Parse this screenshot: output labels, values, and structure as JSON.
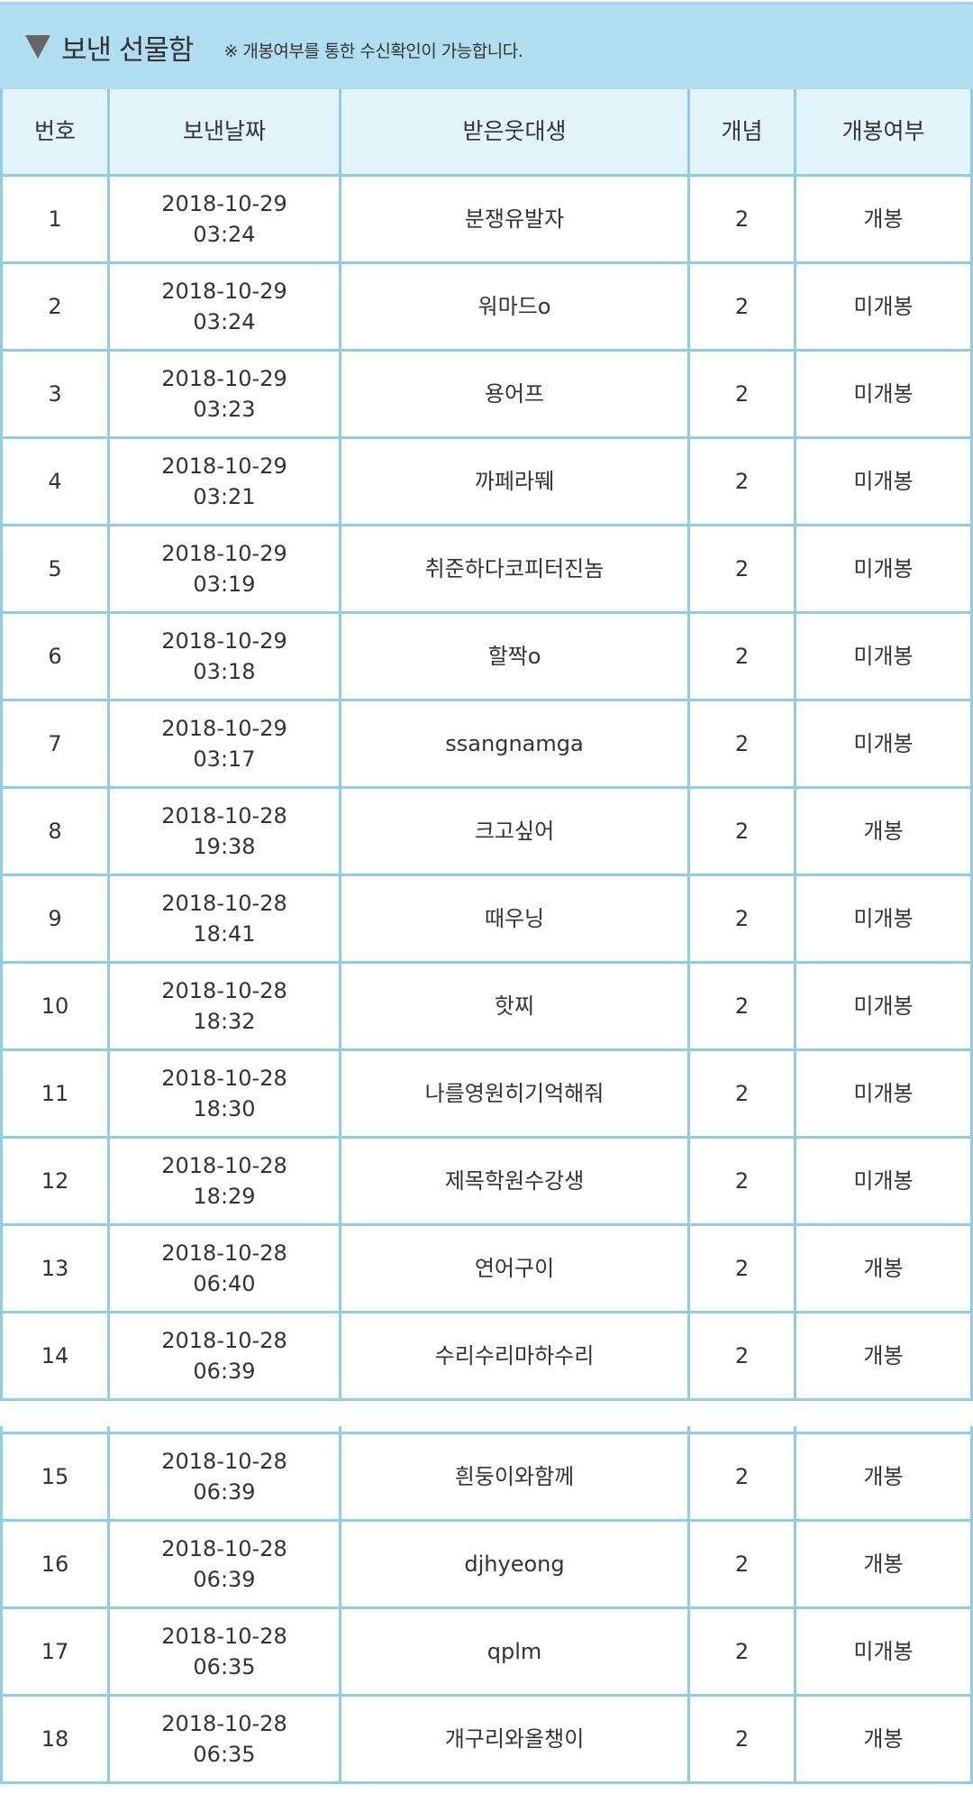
{
  "header": {
    "icon": "triangle-down-icon",
    "title": "보낸 선물함",
    "note": "※ 개봉여부를 통한 수신확인이 가능합니다."
  },
  "colors": {
    "band": "#b0ddf0",
    "header_row": "#e2f3fa",
    "border": "#8fcde6"
  },
  "columns": [
    "번호",
    "보낸날짜",
    "받은웃대생",
    "개념",
    "개봉여부"
  ],
  "rows": [
    {
      "no": "1",
      "date": "2018-10-29",
      "time": "03:24",
      "name": "분쟁유발자",
      "count": "2",
      "status": "개봉"
    },
    {
      "no": "2",
      "date": "2018-10-29",
      "time": "03:24",
      "name": "워마드o",
      "count": "2",
      "status": "미개봉"
    },
    {
      "no": "3",
      "date": "2018-10-29",
      "time": "03:23",
      "name": "용어프",
      "count": "2",
      "status": "미개봉"
    },
    {
      "no": "4",
      "date": "2018-10-29",
      "time": "03:21",
      "name": "까페라뛔",
      "count": "2",
      "status": "미개봉"
    },
    {
      "no": "5",
      "date": "2018-10-29",
      "time": "03:19",
      "name": "취준하다코피터진놈",
      "count": "2",
      "status": "미개봉"
    },
    {
      "no": "6",
      "date": "2018-10-29",
      "time": "03:18",
      "name": "할짝o",
      "count": "2",
      "status": "미개봉"
    },
    {
      "no": "7",
      "date": "2018-10-29",
      "time": "03:17",
      "name": "ssangnamga",
      "count": "2",
      "status": "미개봉"
    },
    {
      "no": "8",
      "date": "2018-10-28",
      "time": "19:38",
      "name": "크고싶어",
      "count": "2",
      "status": "개봉"
    },
    {
      "no": "9",
      "date": "2018-10-28",
      "time": "18:41",
      "name": "때우닝",
      "count": "2",
      "status": "미개봉"
    },
    {
      "no": "10",
      "date": "2018-10-28",
      "time": "18:32",
      "name": "핫찌",
      "count": "2",
      "status": "미개봉"
    },
    {
      "no": "11",
      "date": "2018-10-28",
      "time": "18:30",
      "name": "나를영원히기억해줘",
      "count": "2",
      "status": "미개봉"
    },
    {
      "no": "12",
      "date": "2018-10-28",
      "time": "18:29",
      "name": "제목학원수강생",
      "count": "2",
      "status": "미개봉"
    },
    {
      "no": "13",
      "date": "2018-10-28",
      "time": "06:40",
      "name": "연어구이",
      "count": "2",
      "status": "개봉"
    },
    {
      "no": "14",
      "date": "2018-10-28",
      "time": "06:39",
      "name": "수리수리마하수리",
      "count": "2",
      "status": "개봉"
    },
    {
      "no": "15",
      "date": "2018-10-28",
      "time": "06:39",
      "name": "흰둥이와함께",
      "count": "2",
      "status": "개봉"
    },
    {
      "no": "16",
      "date": "2018-10-28",
      "time": "06:39",
      "name": "djhyeong",
      "count": "2",
      "status": "개봉"
    },
    {
      "no": "17",
      "date": "2018-10-28",
      "time": "06:35",
      "name": "qplm",
      "count": "2",
      "status": "미개봉"
    },
    {
      "no": "18",
      "date": "2018-10-28",
      "time": "06:35",
      "name": "개구리와올챙이",
      "count": "2",
      "status": "개봉"
    }
  ]
}
